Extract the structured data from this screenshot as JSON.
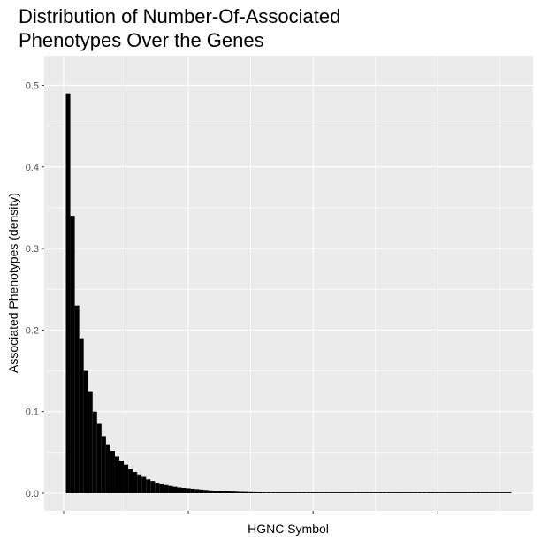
{
  "chart_data": {
    "type": "bar",
    "title_lines": [
      "Distribution of Number-Of-Associated",
      "Phenotypes Over the Genes"
    ],
    "xlabel": "HGNC Symbol",
    "ylabel": "Associated Phenotypes (density)",
    "ylim": [
      0,
      0.52
    ],
    "y_ticks": [
      0.0,
      0.1,
      0.2,
      0.3,
      0.4,
      0.5
    ],
    "y_tick_labels": [
      "0.0",
      "0.1",
      "0.2",
      "0.3",
      "0.4",
      "0.5"
    ],
    "x_tick_labels": [],
    "x_range": [
      0,
      101
    ],
    "grid": true,
    "panel_background": "#ebebeb",
    "grid_color": "#ffffff",
    "bar_color": "#000000",
    "x": [
      1,
      2,
      3,
      4,
      5,
      6,
      7,
      8,
      9,
      10,
      11,
      12,
      13,
      14,
      15,
      16,
      17,
      18,
      19,
      20,
      21,
      22,
      23,
      24,
      25,
      26,
      27,
      28,
      29,
      30,
      31,
      32,
      33,
      34,
      35,
      36,
      37,
      38,
      39,
      40,
      41,
      42,
      43,
      44,
      45,
      46,
      47,
      48,
      49,
      50,
      51,
      52,
      53,
      54,
      55,
      56,
      57,
      58,
      59,
      60,
      61,
      62,
      63,
      64,
      65,
      66,
      67,
      68,
      69,
      70,
      71,
      72,
      73,
      74,
      75,
      76,
      77,
      78,
      79,
      80,
      81,
      82,
      83,
      84,
      85,
      86,
      87,
      88,
      89,
      90,
      91,
      92,
      93,
      94,
      95,
      96,
      97,
      98,
      99,
      100
    ],
    "values": [
      0.49,
      0.34,
      0.23,
      0.19,
      0.15,
      0.125,
      0.1,
      0.085,
      0.07,
      0.06,
      0.052,
      0.045,
      0.04,
      0.035,
      0.03,
      0.026,
      0.023,
      0.02,
      0.017,
      0.015,
      0.013,
      0.012,
      0.01,
      0.009,
      0.008,
      0.007,
      0.0065,
      0.006,
      0.0055,
      0.005,
      0.0045,
      0.004,
      0.0035,
      0.003,
      0.003,
      0.0025,
      0.0022,
      0.002,
      0.0018,
      0.0016,
      0.0015,
      0.0013,
      0.0012,
      0.0011,
      0.001,
      0.001,
      0.001,
      0.001,
      0.001,
      0.001,
      0.001,
      0.001,
      0.001,
      0.001,
      0.001,
      0.001,
      0.001,
      0.001,
      0.001,
      0.001,
      0.001,
      0.001,
      0.001,
      0.001,
      0.001,
      0.001,
      0.001,
      0.001,
      0.001,
      0.001,
      0.001,
      0.001,
      0.001,
      0.001,
      0.001,
      0.001,
      0.001,
      0.001,
      0.001,
      0.001,
      0.001,
      0.001,
      0.001,
      0.001,
      0.001,
      0.001,
      0.001,
      0.001,
      0.001,
      0.001,
      0.001,
      0.001,
      0.001,
      0.001,
      0.001,
      0.001,
      0.001,
      0.001,
      0.001,
      0.001
    ]
  }
}
